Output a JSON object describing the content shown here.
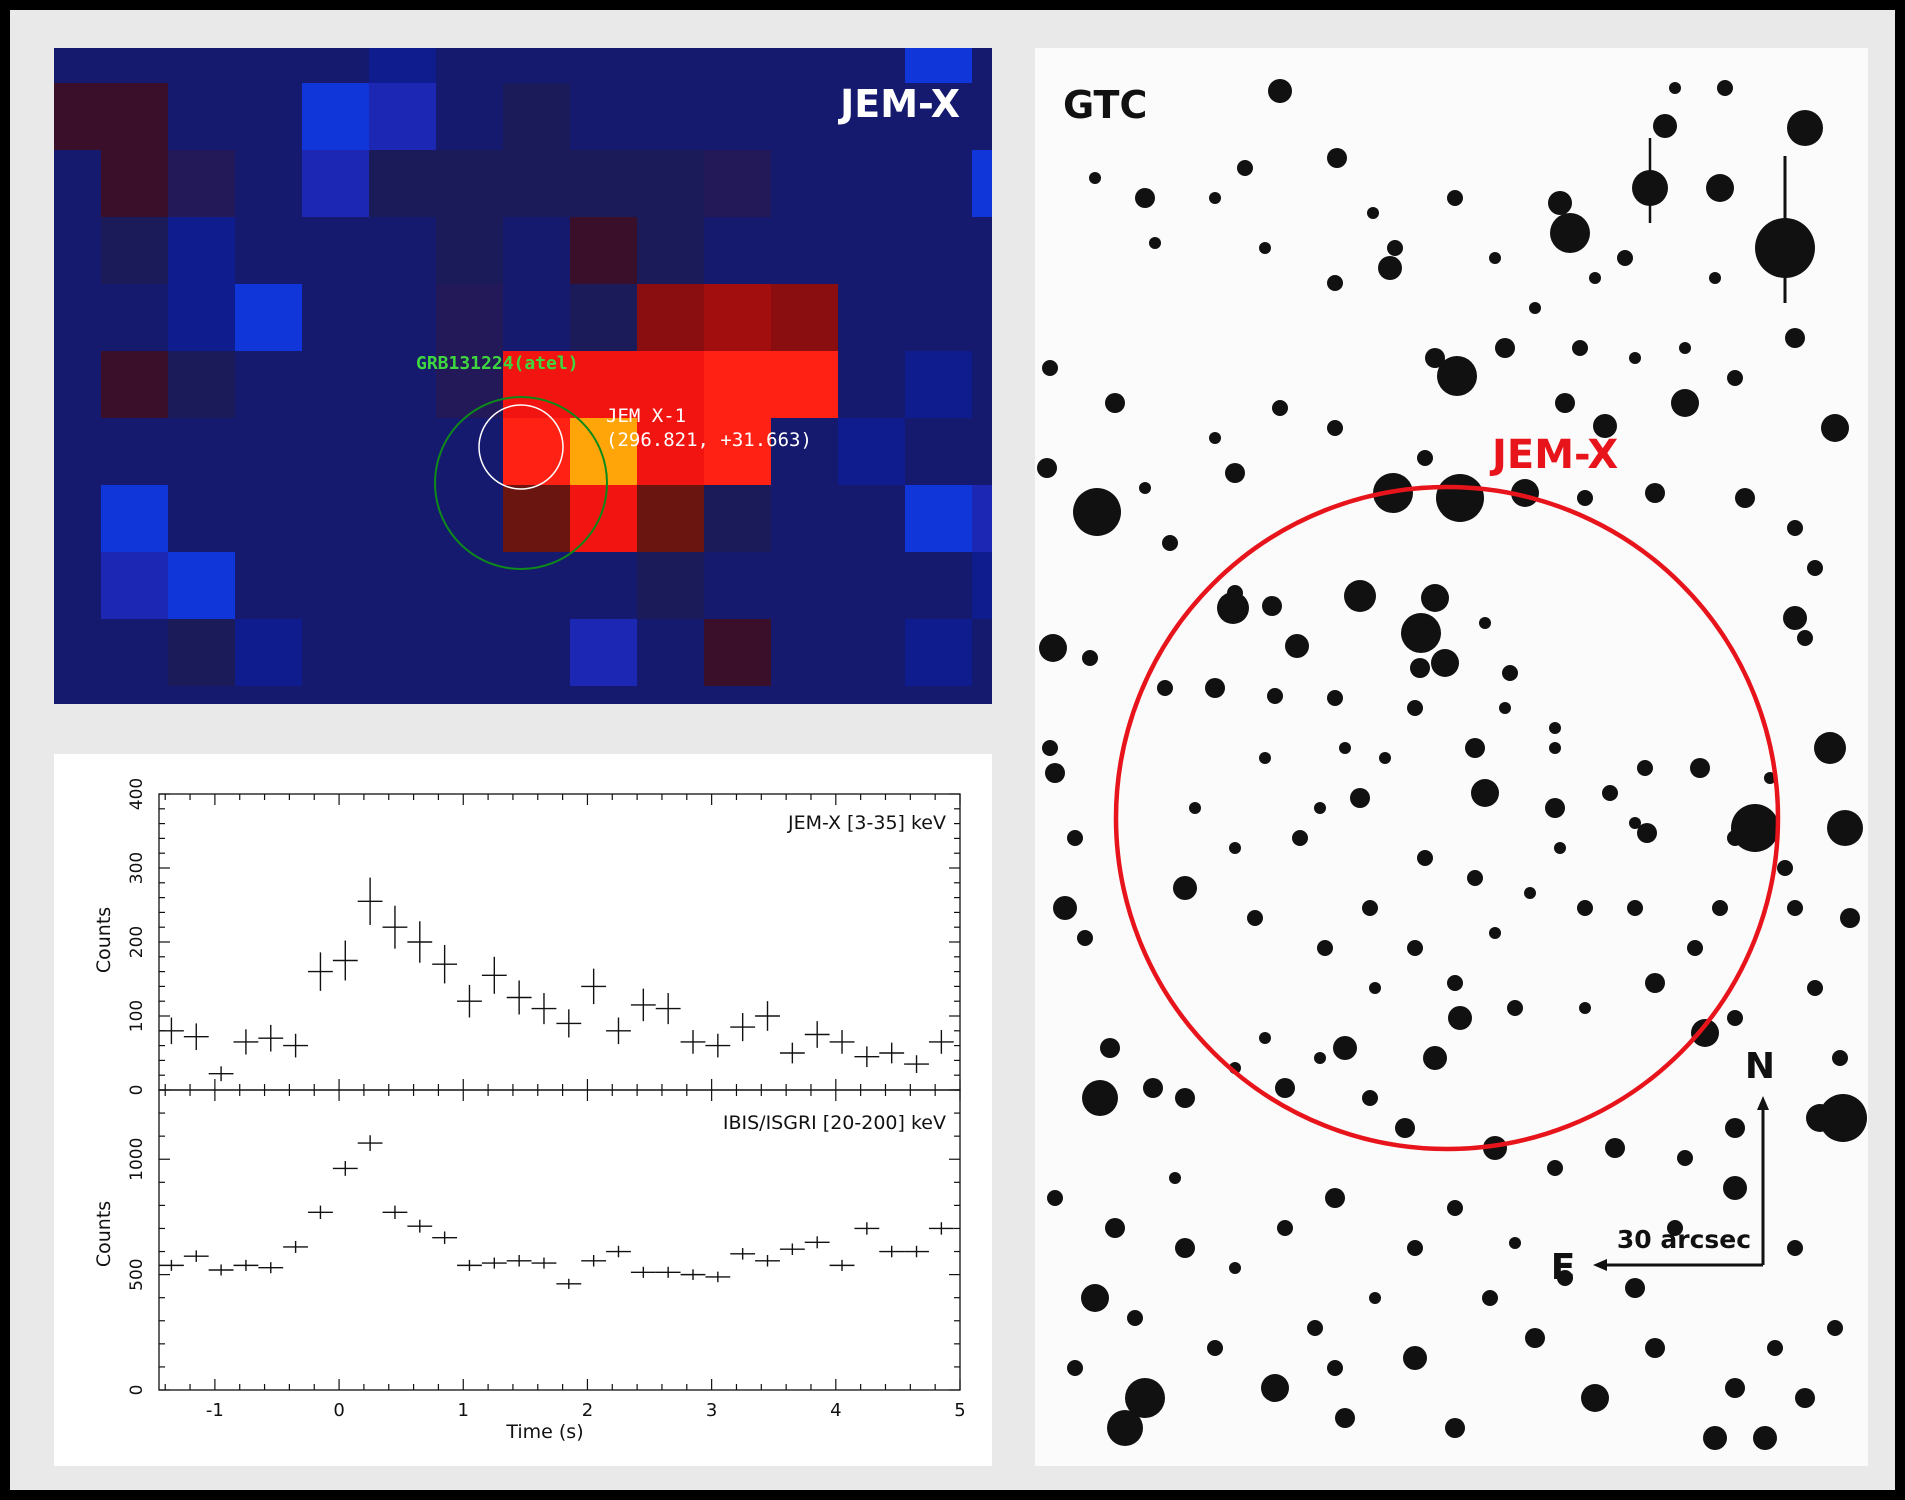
{
  "jemx_panel": {
    "title": "JEM-X",
    "grb_label": "GRB131224(atel)",
    "source_label": "JEM X-1",
    "source_coords": "(296.821, +31.663)",
    "colors": {
      "background": "#131663",
      "grb_circle": "#0d8a1a",
      "grb_text": "#3ed63e",
      "source_circle": "#ffffff",
      "label_text": "#ffffff"
    }
  },
  "gtc_panel": {
    "title": "GTC",
    "circle_label": "JEM-X",
    "north_label": "N",
    "east_label": "E",
    "scale_label": "30 arcsec",
    "colors": {
      "circle": "#e8141c",
      "stars": "#111111"
    }
  },
  "chart_data": [
    {
      "type": "scatter",
      "title": "",
      "label": "JEM-X [3-35] keV",
      "xlabel": "",
      "ylabel": "Counts",
      "xlim": [
        -1.45,
        5
      ],
      "ylim": [
        0,
        400
      ],
      "yticks": [
        0,
        100,
        200,
        300,
        400
      ],
      "grid": false,
      "x": [
        -1.35,
        -1.15,
        -0.95,
        -0.75,
        -0.55,
        -0.35,
        -0.15,
        0.05,
        0.25,
        0.45,
        0.65,
        0.85,
        1.05,
        1.25,
        1.45,
        1.65,
        1.85,
        2.05,
        2.25,
        2.45,
        2.65,
        2.85,
        3.05,
        3.25,
        3.45,
        3.65,
        3.85,
        4.05,
        4.25,
        4.45,
        4.65,
        4.85
      ],
      "y": [
        80,
        72,
        22,
        65,
        70,
        60,
        160,
        175,
        255,
        220,
        200,
        170,
        120,
        155,
        125,
        110,
        90,
        140,
        80,
        115,
        110,
        65,
        60,
        85,
        100,
        50,
        75,
        65,
        45,
        50,
        35,
        65
      ],
      "yerr": [
        18,
        18,
        10,
        17,
        18,
        16,
        26,
        27,
        32,
        29,
        28,
        26,
        22,
        25,
        23,
        21,
        19,
        24,
        18,
        22,
        21,
        16,
        16,
        19,
        20,
        14,
        18,
        16,
        14,
        14,
        12,
        16
      ]
    },
    {
      "type": "scatter",
      "title": "",
      "label": "IBIS/ISGRI [20-200] keV",
      "xlabel": "Time (s)",
      "ylabel": "Counts",
      "xlim": [
        -1.45,
        5
      ],
      "ylim": [
        0,
        1300
      ],
      "yticks": [
        0,
        500,
        1000
      ],
      "xticks": [
        -1,
        0,
        1,
        2,
        3,
        4,
        5
      ],
      "grid": false,
      "x": [
        -1.35,
        -1.15,
        -0.95,
        -0.75,
        -0.55,
        -0.35,
        -0.15,
        0.05,
        0.25,
        0.45,
        0.65,
        0.85,
        1.05,
        1.25,
        1.45,
        1.65,
        1.85,
        2.05,
        2.25,
        2.45,
        2.65,
        2.85,
        3.05,
        3.25,
        3.45,
        3.65,
        3.85,
        4.05,
        4.25,
        4.45,
        4.65,
        4.85
      ],
      "y": [
        540,
        580,
        520,
        540,
        530,
        620,
        770,
        960,
        1070,
        770,
        710,
        660,
        540,
        550,
        560,
        550,
        460,
        560,
        600,
        510,
        510,
        500,
        490,
        590,
        560,
        610,
        640,
        540,
        700,
        600,
        600,
        700
      ],
      "yerr": [
        24,
        25,
        24,
        24,
        24,
        26,
        29,
        32,
        34,
        29,
        28,
        27,
        24,
        24,
        25,
        24,
        22,
        25,
        25,
        24,
        24,
        23,
        23,
        25,
        25,
        25,
        26,
        24,
        27,
        25,
        25,
        27
      ]
    }
  ]
}
